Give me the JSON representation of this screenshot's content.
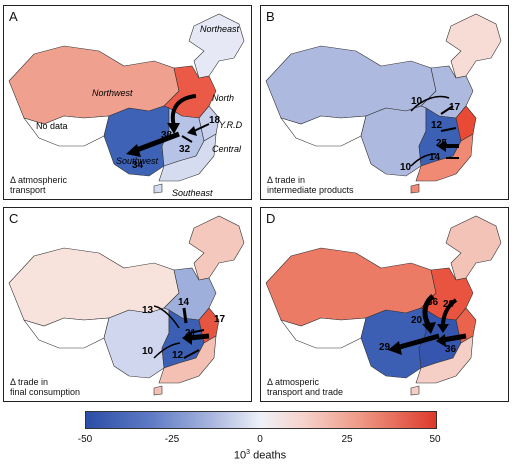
{
  "panels": [
    {
      "letter": "A",
      "caption": "Δ atmospheric\ntransport",
      "colors": {
        "nw": "#f0a08f",
        "ne": "#e6e9f5",
        "north": "#ea5a47",
        "sw": "#3e62b5",
        "cen": "#b7c3e6",
        "yrd": "#c9d1ec",
        "se": "#d6dcf0"
      },
      "regions": [
        "Northeast",
        "Northwest",
        "North",
        "No data",
        "Y.R.D",
        "Southwest",
        "Central",
        "Southeast"
      ],
      "flows": [
        "38",
        "18",
        "34",
        "32"
      ]
    },
    {
      "letter": "B",
      "caption": "Δ trade in\nintermediate products",
      "colors": {
        "nw": "#aeb9df",
        "ne": "#f7dcd5",
        "north": "#aeb9df",
        "sw": "#aeb9df",
        "cen": "#3c60b4",
        "yrd": "#e84a36",
        "se": "#f08a74"
      },
      "flows": [
        "10",
        "17",
        "12",
        "25",
        "14",
        "10"
      ]
    },
    {
      "letter": "C",
      "caption": "Δ trade in\nfinal consumption",
      "colors": {
        "nw": "#f8e2dc",
        "ne": "#f4c8bd",
        "north": "#9fafdb",
        "sw": "#cfd6ee",
        "cen": "#3a5fb3",
        "yrd": "#e6553f",
        "se": "#f4c0b3"
      },
      "flows": [
        "13",
        "14",
        "17",
        "21",
        "10",
        "12"
      ]
    },
    {
      "letter": "D",
      "caption": "Δ atmosperic\ntransport and trade",
      "colors": {
        "nw": "#ec7b66",
        "ne": "#f4c3b7",
        "north": "#e8543f",
        "sw": "#3c5fb4",
        "cen": "#3555ae",
        "yrd": "#e9634d",
        "se": "#f5cfc6"
      },
      "flows": [
        "36",
        "20",
        "20",
        "29",
        "36"
      ]
    }
  ],
  "colorbar": {
    "ticks": [
      "-50",
      "-25",
      "0",
      "25",
      "50"
    ],
    "title_base": "10",
    "title_sup": "3",
    "title_rest": " deaths"
  }
}
